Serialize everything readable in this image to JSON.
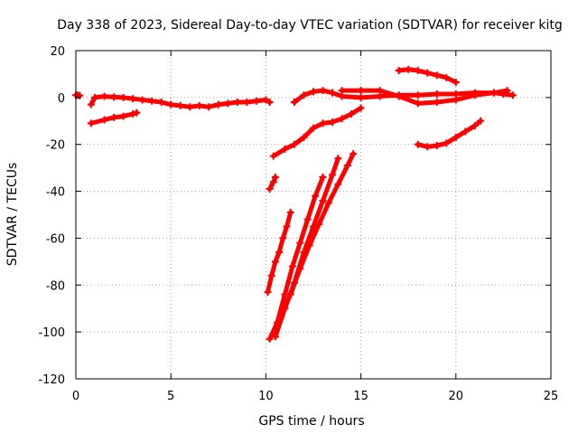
{
  "chart_data": {
    "type": "scatter",
    "title": "Day 338 of 2023, Sidereal Day-to-day VTEC variation (SDTVAR) for receiver kitg",
    "xlabel": "GPS time / hours",
    "ylabel": "SDTVAR / TECUs",
    "xlim": [
      0,
      25
    ],
    "ylim": [
      -120,
      20
    ],
    "x_ticks": [
      0,
      5,
      10,
      15,
      20,
      25
    ],
    "y_ticks": [
      -120,
      -100,
      -80,
      -60,
      -40,
      -20,
      0,
      20
    ],
    "grid": true,
    "legend": "none",
    "marker_color": "#ff0000",
    "series": [
      {
        "x": [
          0.0,
          0.1,
          0.2
        ],
        "y": [
          1.0,
          1.0,
          0.8
        ]
      },
      {
        "x": [
          0.8,
          1.0,
          1.5,
          2.0,
          2.5,
          3.0,
          3.5,
          4.0,
          4.5,
          5.0,
          5.5,
          6.0,
          6.5,
          7.0,
          7.5,
          8.0,
          8.5,
          9.0,
          9.5,
          10.0,
          10.2
        ],
        "y": [
          -3.0,
          0.0,
          0.5,
          0.2,
          0.0,
          -0.5,
          -1.0,
          -1.5,
          -2.0,
          -3.0,
          -3.5,
          -4.0,
          -3.5,
          -4.0,
          -3.0,
          -2.5,
          -2.0,
          -2.0,
          -1.5,
          -1.0,
          -2.0
        ]
      },
      {
        "x": [
          0.8,
          1.5,
          2.0,
          2.5,
          3.0,
          3.2
        ],
        "y": [
          -11.0,
          -9.5,
          -8.5,
          -8.0,
          -7.0,
          -6.5
        ]
      },
      {
        "x": [
          10.2,
          10.4,
          10.5
        ],
        "y": [
          -39.0,
          -36.0,
          -34.0
        ]
      },
      {
        "x": [
          10.4,
          11.0,
          11.5,
          12.0,
          12.5,
          13.0,
          13.5,
          14.0,
          14.5,
          15.0
        ],
        "y": [
          -25.0,
          -22.0,
          -20.0,
          -17.0,
          -13.0,
          -11.0,
          -10.5,
          -9.0,
          -7.0,
          -4.5
        ]
      },
      {
        "x": [
          11.5,
          12.0,
          12.5,
          13.0,
          13.5,
          14.0,
          15.0,
          16.0,
          17.0,
          18.0,
          19.0,
          20.0,
          21.0,
          22.0,
          22.5,
          23.0
        ],
        "y": [
          -2.0,
          1.0,
          2.5,
          3.0,
          2.0,
          0.5,
          0.0,
          0.5,
          1.0,
          1.0,
          1.5,
          1.5,
          2.0,
          2.0,
          1.5,
          1.0
        ]
      },
      {
        "x": [
          14.0,
          15.0,
          16.0,
          17.0,
          18.0,
          19.0,
          20.0,
          21.0,
          22.0,
          22.7
        ],
        "y": [
          3.0,
          3.0,
          3.0,
          0.5,
          -2.5,
          -2.0,
          -1.0,
          1.0,
          2.0,
          3.0
        ]
      },
      {
        "x": [
          17.0,
          17.5,
          18.0,
          18.5,
          19.0,
          19.5,
          20.0
        ],
        "y": [
          11.5,
          12.0,
          11.5,
          10.5,
          9.5,
          8.5,
          6.5
        ]
      },
      {
        "x": [
          18.0,
          18.5,
          19.0,
          19.5,
          20.0,
          20.5,
          21.0,
          21.3
        ],
        "y": [
          -20.0,
          -21.0,
          -20.5,
          -19.5,
          -17.0,
          -14.5,
          -12.0,
          -10.0
        ]
      },
      {
        "x": [
          10.1,
          10.3,
          10.5,
          10.7,
          10.9,
          11.1,
          11.3
        ],
        "y": [
          -83.0,
          -76.0,
          -70.0,
          -66.0,
          -60.0,
          -55.0,
          -49.0
        ]
      },
      {
        "x": [
          10.2,
          10.6,
          11.0,
          11.4,
          11.8,
          12.2,
          12.6,
          13.0
        ],
        "y": [
          -103.0,
          -96.0,
          -84.0,
          -72.0,
          -62.0,
          -52.0,
          -42.0,
          -34.0
        ]
      },
      {
        "x": [
          10.5,
          11.0,
          11.5,
          12.0,
          12.5,
          13.0,
          13.5,
          13.8
        ],
        "y": [
          -102.0,
          -90.0,
          -79.0,
          -66.0,
          -55.0,
          -44.0,
          -33.0,
          -26.0
        ]
      },
      {
        "x": [
          10.8,
          11.3,
          11.8,
          12.3,
          12.8,
          13.3,
          13.8,
          14.3,
          14.6
        ],
        "y": [
          -93.0,
          -84.0,
          -73.0,
          -63.0,
          -54.0,
          -45.0,
          -37.0,
          -29.0,
          -24.0
        ]
      }
    ]
  }
}
